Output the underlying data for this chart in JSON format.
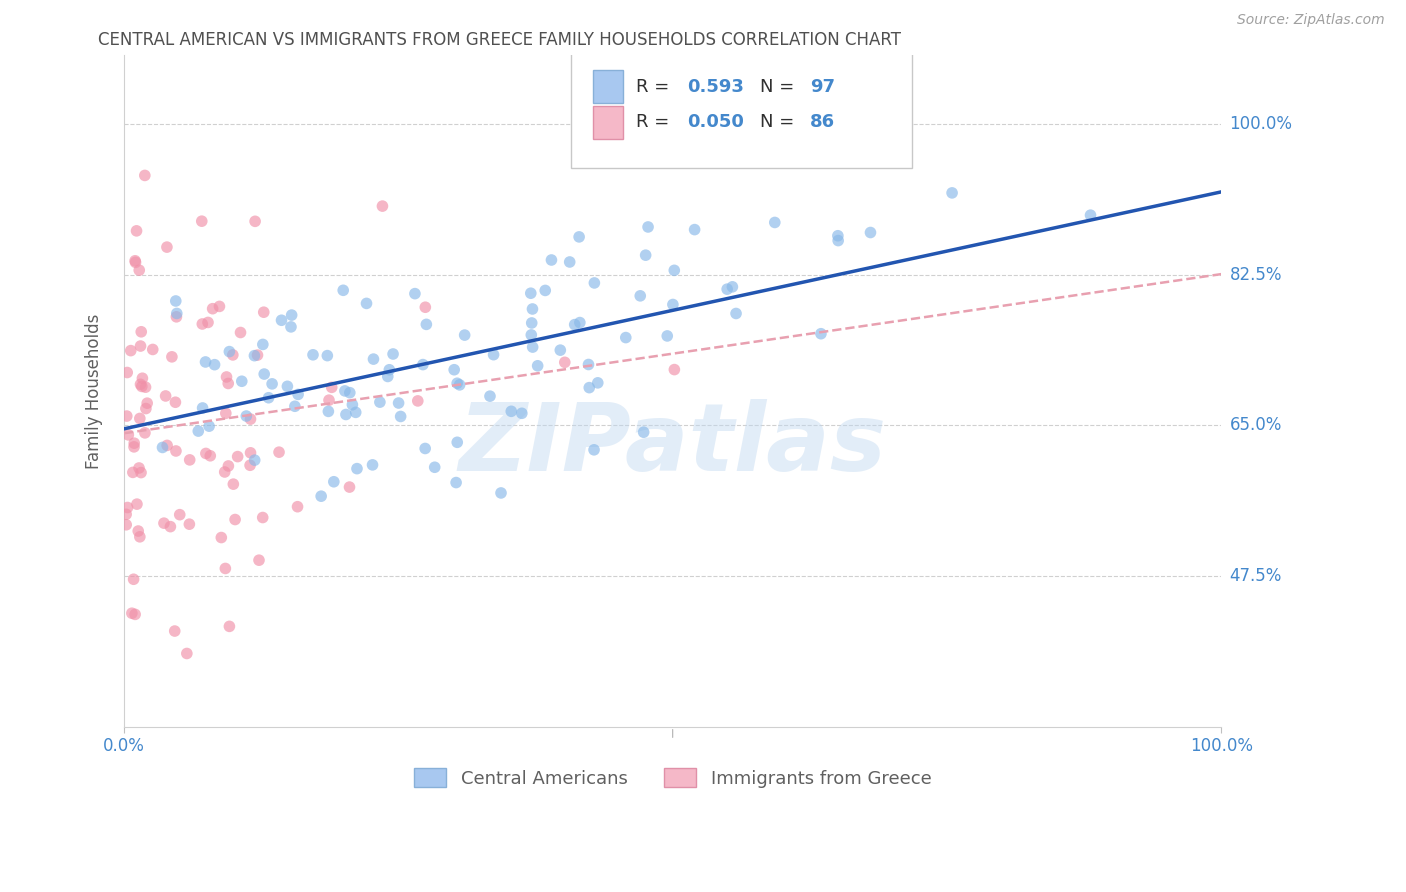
{
  "title": "CENTRAL AMERICAN VS IMMIGRANTS FROM GREECE FAMILY HOUSEHOLDS CORRELATION CHART",
  "source": "Source: ZipAtlas.com",
  "ylabel": "Family Households",
  "watermark": "ZIPatlas",
  "legend_1_color": "#a8c8f0",
  "legend_2_color": "#f5b8c8",
  "scatter_1_color": "#88b8e8",
  "scatter_2_color": "#f090a8",
  "line_1_color": "#2255b0",
  "line_2_color": "#e8a0b0",
  "bg_color": "#ffffff",
  "grid_color": "#d0d0d0",
  "title_color": "#505050",
  "source_color": "#a0a0a0",
  "axis_label_color": "#4488cc",
  "R1": 0.593,
  "N1": 97,
  "R2": 0.05,
  "N2": 86,
  "xlim": [
    0.0,
    1.0
  ],
  "ylim": [
    0.3,
    1.08
  ],
  "y_ticks": [
    0.475,
    0.65,
    0.825,
    1.0
  ],
  "y_tick_labels": [
    "47.5%",
    "65.0%",
    "82.5%",
    "100.0%"
  ],
  "x_tick_labels": [
    "0.0%",
    "100.0%"
  ],
  "seed1": 42,
  "seed2": 77
}
